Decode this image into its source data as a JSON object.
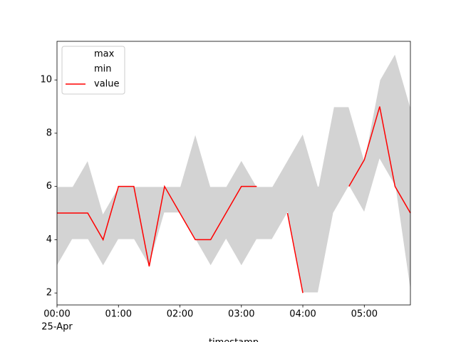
{
  "chart_data": {
    "type": "line",
    "x": [
      "00:00",
      "00:15",
      "00:30",
      "00:45",
      "01:00",
      "01:15",
      "01:30",
      "01:45",
      "02:00",
      "02:15",
      "02:30",
      "02:45",
      "03:00",
      "03:15",
      "03:30",
      "03:45",
      "04:00",
      "04:15",
      "04:30",
      "04:45",
      "05:00",
      "05:15",
      "05:30",
      "05:45"
    ],
    "date_label": "25-Apr",
    "xlabel": "timestamp",
    "series": [
      {
        "name": "max",
        "color": "#ffffff",
        "values": [
          6,
          6,
          7,
          5,
          6,
          6,
          6,
          6,
          6,
          8,
          6,
          6,
          7,
          6,
          6,
          7,
          8,
          6,
          9,
          9,
          7,
          10,
          11,
          9
        ]
      },
      {
        "name": "min",
        "color": "#ffffff",
        "values": [
          3,
          4,
          4,
          3,
          4,
          4,
          3,
          5,
          5,
          4,
          3,
          4,
          3,
          4,
          4,
          5,
          2,
          2,
          5,
          6,
          5,
          7,
          6,
          2
        ]
      },
      {
        "name": "value",
        "color": "#ff0000",
        "values": [
          5,
          5,
          5,
          4,
          6,
          6,
          3,
          6,
          5,
          4,
          4,
          5,
          6,
          6,
          null,
          5,
          2,
          null,
          null,
          6,
          7,
          9,
          6,
          5
        ]
      }
    ],
    "fill_color": "#d3d3d3",
    "xlim": [
      "00:00",
      "05:45"
    ],
    "xticks": [
      "00:00",
      "01:00",
      "02:00",
      "03:00",
      "04:00",
      "05:00"
    ],
    "ylim": [
      1.55,
      11.45
    ],
    "yticks": [
      2,
      4,
      6,
      8,
      10
    ],
    "legend": "upper left"
  }
}
